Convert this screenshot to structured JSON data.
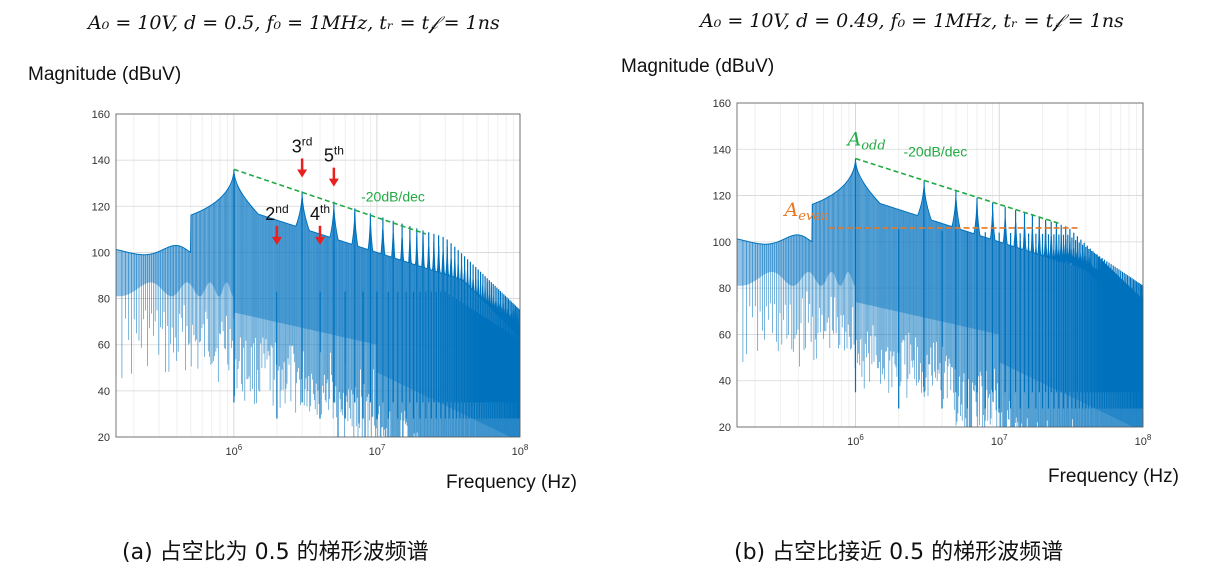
{
  "panels": [
    {
      "formula": "A₀ = 10V, d = 0.5, f₀ = 1MHz, tᵣ = t𝒻 = 1ns",
      "ylabel": "Magnitude (dBuV)",
      "xlabel": "Frequency (Hz)",
      "caption": "(a) 占空比为 0.5 的梯形波频谱"
    },
    {
      "formula": "A₀ = 10V, d = 0.49, f₀ = 1MHz, tᵣ = t𝒻 = 1ns",
      "ylabel": "Magnitude (dBuV)",
      "xlabel": "Frequency (Hz)",
      "caption": "(b) 占空比接近 0.5 的梯形波频谱"
    }
  ],
  "colors": {
    "spectrum": "#0072bd",
    "slope_line": "#22aa44",
    "even_line": "#e87722",
    "arrow": "#e8201f",
    "grid": "#d9d9d9"
  },
  "chart_data": [
    {
      "type": "line",
      "x_scale": "log",
      "xlim": [
        150000,
        100000000
      ],
      "ylim": [
        20,
        160
      ],
      "yticks": [
        20,
        40,
        60,
        80,
        100,
        120,
        140,
        160
      ],
      "xticks": [
        {
          "value": 1000000,
          "label": "10^6"
        },
        {
          "value": 10000000,
          "label": "10^7"
        },
        {
          "value": 100000000,
          "label": "10^8"
        }
      ],
      "grid": true,
      "series": [
        {
          "duty": 0.5,
          "fundamental_hz": 1000000,
          "fundamental_db": 136,
          "envelope": "odd harmonics -20dB/dec, even harmonics suppressed"
        }
      ],
      "annotations": [
        {
          "text": "-20dB/dec",
          "x1": 1000000,
          "y1": 136,
          "x2": 22000000,
          "y2": 108
        },
        {
          "text": "2",
          "sup": "nd",
          "x": 2000000,
          "y": 102
        },
        {
          "text": "3",
          "sup": "rd",
          "x": 3000000,
          "y": 126
        },
        {
          "text": "4",
          "sup": "th",
          "x": 4000000,
          "y": 102
        },
        {
          "text": "5",
          "sup": "th",
          "x": 5000000,
          "y": 122
        }
      ]
    },
    {
      "type": "line",
      "x_scale": "log",
      "xlim": [
        150000,
        100000000
      ],
      "ylim": [
        20,
        160
      ],
      "yticks": [
        20,
        40,
        60,
        80,
        100,
        120,
        140,
        160
      ],
      "xticks": [
        {
          "value": 1000000,
          "label": "10^6"
        },
        {
          "value": 10000000,
          "label": "10^7"
        },
        {
          "value": 100000000,
          "label": "10^8"
        }
      ],
      "grid": true,
      "series": [
        {
          "duty": 0.49,
          "fundamental_hz": 1000000,
          "fundamental_db": 136,
          "envelope": "odd harmonics -20dB/dec, even harmonics ~106 dB"
        }
      ],
      "annotations": [
        {
          "text": "-20dB/dec",
          "x1": 1000000,
          "y1": 136,
          "x2": 26000000,
          "y2": 108
        },
        {
          "text": "A",
          "sub": "odd",
          "x": 1000000,
          "y": 140
        },
        {
          "text": "A",
          "sub": "even",
          "x": 650000,
          "y": 106,
          "x2": 35000000
        }
      ]
    }
  ]
}
